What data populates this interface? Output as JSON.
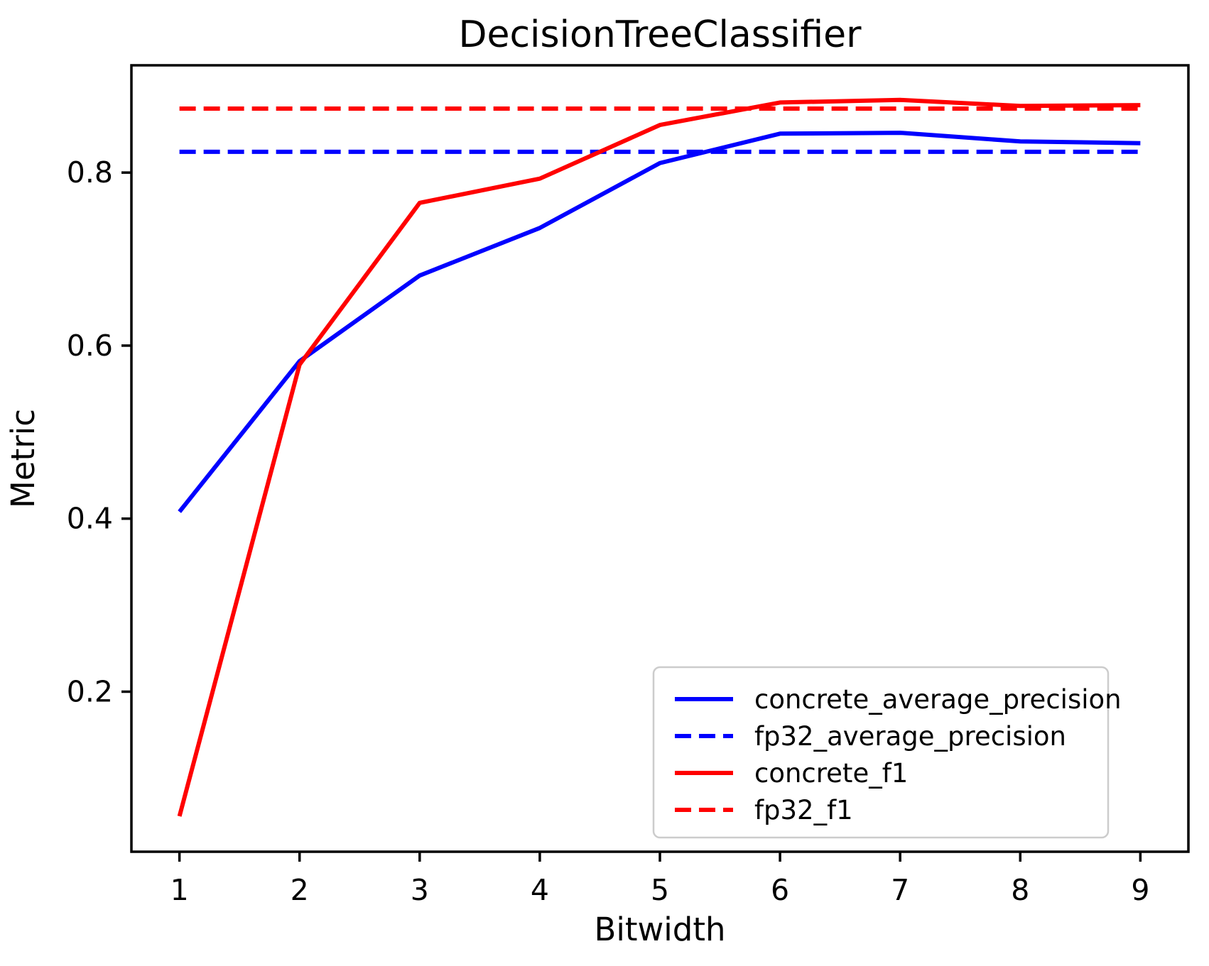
{
  "title": "DecisionTreeClassifier",
  "chart_data": {
    "type": "line",
    "title": "DecisionTreeClassifier",
    "xlabel": "Bitwidth",
    "ylabel": "Metric",
    "x": [
      1,
      2,
      3,
      4,
      5,
      6,
      7,
      8,
      9
    ],
    "xlim": [
      0.6,
      9.4
    ],
    "ylim": [
      0.015,
      0.924
    ],
    "xticks": [
      1,
      2,
      3,
      4,
      5,
      6,
      7,
      8,
      9
    ],
    "xtick_labels": [
      "1",
      "2",
      "3",
      "4",
      "5",
      "6",
      "7",
      "8",
      "9"
    ],
    "yticks": [
      0.2,
      0.4,
      0.6,
      0.8
    ],
    "ytick_labels": [
      "0.2",
      "0.4",
      "0.6",
      "0.8"
    ],
    "grid": false,
    "legend_position": "lower right",
    "series": [
      {
        "name": "concrete_average_precision",
        "color": "#0000ff",
        "style": "solid",
        "values": [
          0.408,
          0.582,
          0.681,
          0.736,
          0.811,
          0.845,
          0.846,
          0.836,
          0.834
        ]
      },
      {
        "name": "fp32_average_precision",
        "color": "#0000ff",
        "style": "dashed",
        "values": [
          0.824,
          0.824,
          0.824,
          0.824,
          0.824,
          0.824,
          0.824,
          0.824,
          0.824
        ]
      },
      {
        "name": "concrete_f1",
        "color": "#ff0000",
        "style": "solid",
        "values": [
          0.056,
          0.578,
          0.765,
          0.793,
          0.855,
          0.881,
          0.884,
          0.877,
          0.878
        ]
      },
      {
        "name": "fp32_f1",
        "color": "#ff0000",
        "style": "dashed",
        "values": [
          0.874,
          0.874,
          0.874,
          0.874,
          0.874,
          0.874,
          0.874,
          0.874,
          0.874
        ]
      }
    ],
    "colors": {
      "axes": "#000000",
      "text": "#000000",
      "background": "#ffffff",
      "legend_border": "#cccccc",
      "legend_background": "#ffffff"
    }
  }
}
